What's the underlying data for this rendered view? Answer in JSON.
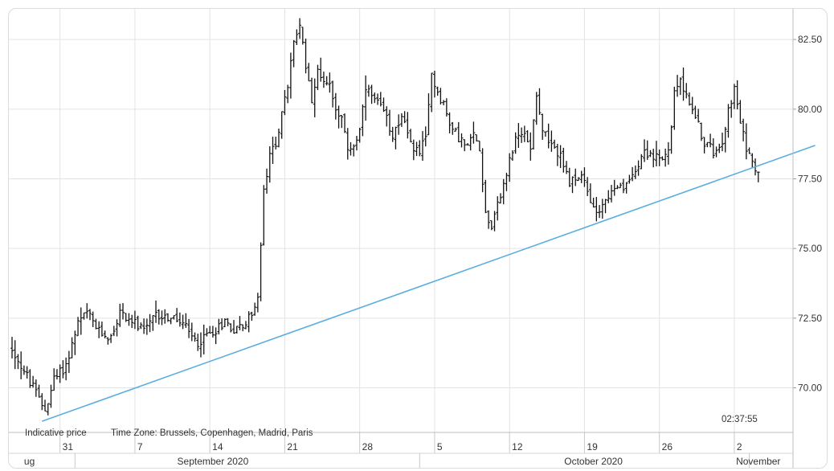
{
  "chart_data": {
    "type": "ohlc",
    "price_label": "Indicative price",
    "timezone_label": "Time Zone: Brussels, Copenhagen, Madrid, Paris",
    "clock": "02:37:55",
    "y_ticks": [
      "70.00",
      "72.50",
      "75.00",
      "77.50",
      "80.00",
      "82.50"
    ],
    "ylim": [
      68.4,
      83.6
    ],
    "grid": true,
    "day_ticks": [
      {
        "label": "31",
        "index": 16
      },
      {
        "label": "7",
        "index": 41
      },
      {
        "label": "14",
        "index": 66
      },
      {
        "label": "21",
        "index": 91
      },
      {
        "label": "28",
        "index": 116
      },
      {
        "label": "5",
        "index": 141
      },
      {
        "label": "12",
        "index": 166
      },
      {
        "label": "19",
        "index": 191
      },
      {
        "label": "26",
        "index": 216
      },
      {
        "label": "2",
        "index": 241
      }
    ],
    "month_labels": [
      {
        "label": "ug",
        "index": 4,
        "anchor": "start"
      },
      {
        "label": "September 2020",
        "index": 67,
        "anchor": "middle"
      },
      {
        "label": "October 2020",
        "index": 194,
        "anchor": "middle"
      },
      {
        "label": "November",
        "index": 249,
        "anchor": "middle"
      }
    ],
    "month_dividers": [
      21,
      136,
      246
    ],
    "trendline": {
      "color": "#5aaee0",
      "start": {
        "index": 10,
        "value": 68.8
      },
      "end": {
        "index": 268,
        "value": 78.7
      }
    },
    "bar_color": "#111111",
    "bar_count": 260,
    "anchors": [
      [
        0,
        71.4
      ],
      [
        4,
        70.6
      ],
      [
        9,
        69.6
      ],
      [
        11,
        69.2
      ],
      [
        14,
        70.3
      ],
      [
        18,
        70.8
      ],
      [
        22,
        72.3
      ],
      [
        25,
        72.7
      ],
      [
        29,
        72.0
      ],
      [
        33,
        71.8
      ],
      [
        36,
        72.7
      ],
      [
        40,
        72.4
      ],
      [
        44,
        72.0
      ],
      [
        48,
        72.6
      ],
      [
        53,
        72.5
      ],
      [
        57,
        72.3
      ],
      [
        60,
        71.8
      ],
      [
        62,
        71.6
      ],
      [
        65,
        71.9
      ],
      [
        68,
        72.1
      ],
      [
        71,
        72.4
      ],
      [
        74,
        72.1
      ],
      [
        78,
        72.3
      ],
      [
        80,
        72.7
      ],
      [
        82,
        73.2
      ],
      [
        84,
        77.0
      ],
      [
        86,
        78.3
      ],
      [
        88,
        78.8
      ],
      [
        90,
        79.8
      ],
      [
        92,
        80.8
      ],
      [
        94,
        82.5
      ],
      [
        96,
        82.9
      ],
      [
        98,
        81.6
      ],
      [
        100,
        80.4
      ],
      [
        102,
        81.3
      ],
      [
        104,
        81.1
      ],
      [
        106,
        80.9
      ],
      [
        108,
        80.1
      ],
      [
        110,
        79.6
      ],
      [
        112,
        78.6
      ],
      [
        114,
        78.7
      ],
      [
        116,
        79.2
      ],
      [
        118,
        80.7
      ],
      [
        121,
        80.3
      ],
      [
        124,
        79.9
      ],
      [
        127,
        79.1
      ],
      [
        130,
        79.8
      ],
      [
        133,
        78.7
      ],
      [
        136,
        78.5
      ],
      [
        138,
        78.9
      ],
      [
        140,
        81.3
      ],
      [
        142,
        80.6
      ],
      [
        144,
        80.2
      ],
      [
        146,
        79.4
      ],
      [
        149,
        79.0
      ],
      [
        152,
        78.6
      ],
      [
        154,
        79.1
      ],
      [
        156,
        78.6
      ],
      [
        158,
        76.3
      ],
      [
        160,
        75.8
      ],
      [
        162,
        76.7
      ],
      [
        164,
        77.2
      ],
      [
        166,
        78.2
      ],
      [
        168,
        78.9
      ],
      [
        171,
        79.1
      ],
      [
        173,
        78.7
      ],
      [
        175,
        80.6
      ],
      [
        177,
        79.3
      ],
      [
        180,
        78.6
      ],
      [
        183,
        78.4
      ],
      [
        186,
        77.2
      ],
      [
        188,
        77.6
      ],
      [
        191,
        77.4
      ],
      [
        193,
        76.6
      ],
      [
        196,
        76.4
      ],
      [
        199,
        76.9
      ],
      [
        202,
        77.1
      ],
      [
        205,
        77.2
      ],
      [
        208,
        77.9
      ],
      [
        211,
        78.5
      ],
      [
        214,
        78.3
      ],
      [
        217,
        78.1
      ],
      [
        219,
        78.5
      ],
      [
        221,
        80.5
      ],
      [
        223,
        81.2
      ],
      [
        225,
        80.4
      ],
      [
        227,
        80.1
      ],
      [
        229,
        79.4
      ],
      [
        231,
        78.8
      ],
      [
        234,
        78.5
      ],
      [
        237,
        78.9
      ],
      [
        239,
        80.0
      ],
      [
        241,
        80.7
      ],
      [
        243,
        79.5
      ],
      [
        245,
        78.6
      ],
      [
        247,
        78.3
      ],
      [
        249,
        77.6
      ]
    ]
  }
}
